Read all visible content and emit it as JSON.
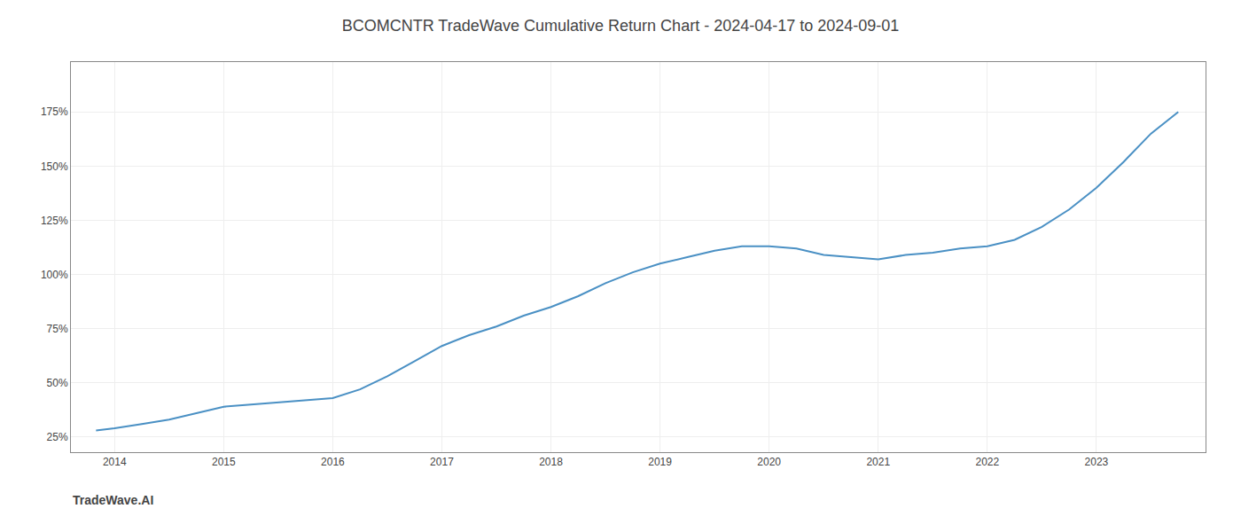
{
  "chart_data": {
    "type": "line",
    "title": "BCOMCNTR TradeWave Cumulative Return Chart - 2024-04-17 to 2024-09-01",
    "annotations": [
      {
        "text": "TradeWave.AI"
      }
    ],
    "x": [
      2013.83,
      2014.0,
      2014.25,
      2014.5,
      2014.75,
      2015.0,
      2015.25,
      2015.5,
      2015.75,
      2016.0,
      2016.25,
      2016.5,
      2016.75,
      2017.0,
      2017.25,
      2017.5,
      2017.75,
      2018.0,
      2018.25,
      2018.5,
      2018.75,
      2019.0,
      2019.25,
      2019.5,
      2019.75,
      2020.0,
      2020.25,
      2020.5,
      2020.75,
      2021.0,
      2021.25,
      2021.5,
      2021.75,
      2022.0,
      2022.25,
      2022.5,
      2022.75,
      2023.0,
      2023.25,
      2023.5,
      2023.75
    ],
    "values": [
      28,
      29,
      31,
      33,
      36,
      39,
      40,
      41,
      42,
      43,
      47,
      53,
      60,
      67,
      72,
      76,
      81,
      85,
      90,
      96,
      101,
      105,
      108,
      111,
      113,
      113,
      112,
      109,
      108,
      107,
      109,
      110,
      112,
      113,
      116,
      122,
      130,
      140,
      152,
      165,
      175
    ],
    "color": "#4a90c4",
    "xlim": [
      2013.6,
      2024.0
    ],
    "xticks": [
      2014,
      2015,
      2016,
      2017,
      2018,
      2019,
      2020,
      2021,
      2022,
      2023
    ],
    "ylim": [
      18,
      198
    ],
    "yticks": [
      {
        "value": 25,
        "label": "25%"
      },
      {
        "value": 50,
        "label": "50%"
      },
      {
        "value": 75,
        "label": "75%"
      },
      {
        "value": 100,
        "label": "100%"
      },
      {
        "value": 125,
        "label": "125%"
      },
      {
        "value": 150,
        "label": "150%"
      },
      {
        "value": 175,
        "label": "175%"
      }
    ],
    "grid": true
  }
}
